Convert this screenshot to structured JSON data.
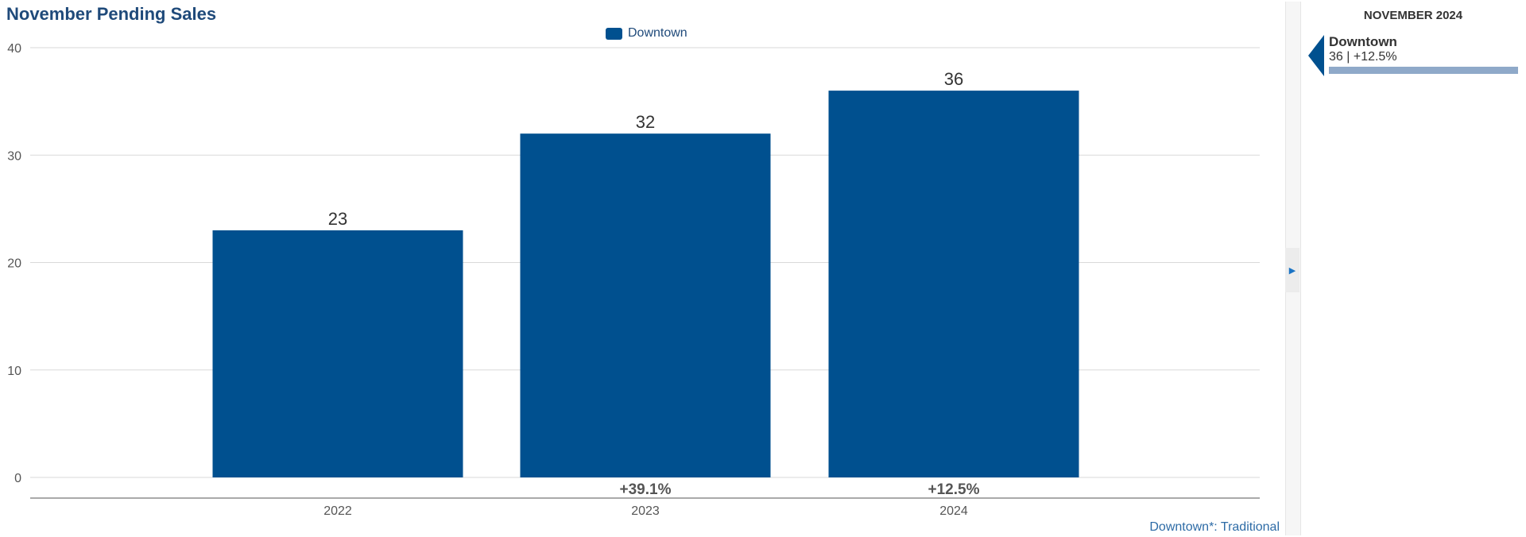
{
  "chart_data": {
    "type": "bar",
    "title": "November Pending Sales",
    "categories": [
      "2022",
      "2023",
      "2024"
    ],
    "series": [
      {
        "name": "Downtown",
        "values": [
          23,
          32,
          36
        ],
        "color": "#00508f"
      }
    ],
    "data_labels": [
      "23",
      "32",
      "36"
    ],
    "change_labels": [
      "",
      "+39.1%",
      "+12.5%"
    ],
    "y_ticks": [
      "0",
      "10",
      "20",
      "30",
      "40"
    ],
    "ylim": [
      0,
      40
    ],
    "xlabel": "",
    "ylabel": "",
    "grid": true,
    "legend_position": "top-center"
  },
  "legend": {
    "label": "Downtown"
  },
  "footnote": "Downtown*: Traditional",
  "side_panel": {
    "period": "NOVEMBER 2024",
    "name": "Downtown",
    "value_text": "36 | +12.5%"
  },
  "colors": {
    "bar": "#00508f",
    "title": "#1f4a7a",
    "grid": "#d9d9d9",
    "side_bar": "#8fa9c9"
  }
}
